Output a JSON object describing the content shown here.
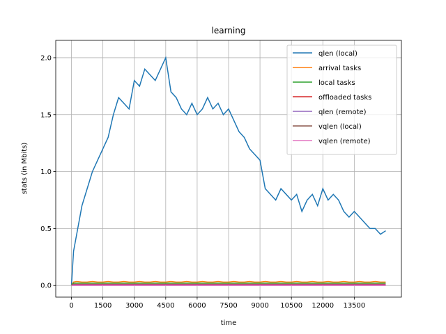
{
  "chart_data": {
    "type": "line",
    "title": "learning",
    "x_label": "time",
    "y_label": "stats (in Mbits)",
    "x": [
      0,
      100,
      250,
      500,
      750,
      1000,
      1250,
      1500,
      1750,
      2000,
      2250,
      2500,
      2750,
      3000,
      3250,
      3500,
      3750,
      4000,
      4250,
      4500,
      4750,
      5000,
      5250,
      5500,
      5750,
      6000,
      6250,
      6500,
      6750,
      7000,
      7250,
      7500,
      7750,
      8000,
      8250,
      8500,
      8750,
      9000,
      9250,
      9500,
      9750,
      10000,
      10250,
      10500,
      10750,
      11000,
      11250,
      11500,
      11750,
      12000,
      12250,
      12500,
      12750,
      13000,
      13250,
      13500,
      13750,
      14000,
      14250,
      14500,
      14750,
      15000
    ],
    "series": [
      {
        "name": "qlen (local)",
        "color": "#1f77b4",
        "values": [
          0,
          0.3,
          0.45,
          0.7,
          0.85,
          1.0,
          1.1,
          1.2,
          1.3,
          1.5,
          1.65,
          1.6,
          1.55,
          1.8,
          1.75,
          1.9,
          1.85,
          1.8,
          1.9,
          2.0,
          1.7,
          1.65,
          1.55,
          1.5,
          1.6,
          1.5,
          1.55,
          1.65,
          1.55,
          1.6,
          1.5,
          1.55,
          1.45,
          1.35,
          1.3,
          1.2,
          1.15,
          1.1,
          0.85,
          0.8,
          0.75,
          0.85,
          0.8,
          0.75,
          0.8,
          0.65,
          0.75,
          0.8,
          0.7,
          0.85,
          0.75,
          0.8,
          0.75,
          0.65,
          0.6,
          0.65,
          0.6,
          0.55,
          0.5,
          0.5,
          0.45,
          0.48
        ]
      },
      {
        "name": "arrival tasks",
        "color": "#ff7f0e",
        "values": [
          0,
          0.03,
          0.035,
          0.03,
          0.03,
          0.035,
          0.03,
          0.03,
          0.035,
          0.03,
          0.03,
          0.035,
          0.03,
          0.03,
          0.035,
          0.03,
          0.03,
          0.035,
          0.03,
          0.03,
          0.035,
          0.03,
          0.03,
          0.035,
          0.03,
          0.03,
          0.035,
          0.03,
          0.03,
          0.035,
          0.03,
          0.03,
          0.035,
          0.03,
          0.03,
          0.035,
          0.03,
          0.03,
          0.035,
          0.03,
          0.03,
          0.035,
          0.03,
          0.03,
          0.035,
          0.03,
          0.03,
          0.035,
          0.03,
          0.03,
          0.035,
          0.03,
          0.03,
          0.035,
          0.03,
          0.03,
          0.035,
          0.03,
          0.03,
          0.035,
          0.03,
          0.03
        ]
      },
      {
        "name": "local tasks",
        "color": "#2ca02c",
        "values": [
          0,
          0.02,
          0.02,
          0.02,
          0.02,
          0.02,
          0.02,
          0.02,
          0.02,
          0.02,
          0.02,
          0.02,
          0.02,
          0.02,
          0.02,
          0.02,
          0.02,
          0.02,
          0.02,
          0.02,
          0.02,
          0.02,
          0.02,
          0.02,
          0.02,
          0.02,
          0.02,
          0.02,
          0.02,
          0.02,
          0.02,
          0.02,
          0.02,
          0.02,
          0.02,
          0.02,
          0.02,
          0.02,
          0.02,
          0.02,
          0.02,
          0.02,
          0.02,
          0.02,
          0.02,
          0.02,
          0.02,
          0.02,
          0.02,
          0.02,
          0.02,
          0.02,
          0.02,
          0.02,
          0.02,
          0.02,
          0.02,
          0.02,
          0.02,
          0.02,
          0.02,
          0.02
        ]
      },
      {
        "name": "offloaded tasks",
        "color": "#d62728",
        "values": [
          0,
          0.01,
          0.01,
          0.01,
          0.01,
          0.01,
          0.01,
          0.01,
          0.01,
          0.01,
          0.01,
          0.01,
          0.01,
          0.01,
          0.01,
          0.01,
          0.01,
          0.01,
          0.01,
          0.01,
          0.01,
          0.01,
          0.01,
          0.01,
          0.01,
          0.01,
          0.01,
          0.01,
          0.01,
          0.01,
          0.01,
          0.01,
          0.01,
          0.01,
          0.01,
          0.01,
          0.01,
          0.01,
          0.01,
          0.01,
          0.01,
          0.01,
          0.01,
          0.01,
          0.01,
          0.01,
          0.01,
          0.01,
          0.01,
          0.01,
          0.01,
          0.01,
          0.01,
          0.01,
          0.01,
          0.01,
          0.01,
          0.01,
          0.01,
          0.01,
          0.01,
          0.01
        ]
      },
      {
        "name": "qlen (remote)",
        "color": "#9467bd",
        "values": [
          0,
          0.005,
          0.005,
          0.005,
          0.005,
          0.005,
          0.005,
          0.005,
          0.005,
          0.005,
          0.005,
          0.005,
          0.005,
          0.005,
          0.005,
          0.005,
          0.005,
          0.005,
          0.005,
          0.005,
          0.005,
          0.005,
          0.005,
          0.005,
          0.005,
          0.005,
          0.005,
          0.005,
          0.005,
          0.005,
          0.005,
          0.005,
          0.005,
          0.005,
          0.005,
          0.005,
          0.005,
          0.005,
          0.005,
          0.005,
          0.005,
          0.005,
          0.005,
          0.005,
          0.005,
          0.005,
          0.005,
          0.005,
          0.005,
          0.005,
          0.005,
          0.005,
          0.005,
          0.005,
          0.005,
          0.005,
          0.005,
          0.005,
          0.005,
          0.005,
          0.005,
          0.005
        ]
      },
      {
        "name": "vqlen (local)",
        "color": "#8c564b",
        "values": [
          0,
          0,
          0,
          0,
          0,
          0,
          0,
          0,
          0,
          0,
          0,
          0,
          0,
          0,
          0,
          0,
          0,
          0,
          0,
          0,
          0,
          0,
          0,
          0,
          0,
          0,
          0,
          0,
          0,
          0,
          0,
          0,
          0,
          0,
          0,
          0,
          0,
          0,
          0,
          0,
          0,
          0,
          0,
          0,
          0,
          0,
          0,
          0,
          0,
          0,
          0,
          0,
          0,
          0,
          0,
          0,
          0,
          0,
          0,
          0,
          0,
          0
        ]
      },
      {
        "name": "vqlen (remote)",
        "color": "#e377c2",
        "values": [
          0,
          0,
          0,
          0,
          0,
          0,
          0,
          0,
          0,
          0,
          0,
          0,
          0,
          0,
          0,
          0,
          0,
          0,
          0,
          0,
          0,
          0,
          0,
          0,
          0,
          0,
          0,
          0,
          0,
          0,
          0,
          0,
          0,
          0,
          0,
          0,
          0,
          0,
          0,
          0,
          0,
          0,
          0,
          0,
          0,
          0,
          0,
          0,
          0,
          0,
          0,
          0,
          0,
          0,
          0,
          0,
          0,
          0,
          0,
          0,
          0,
          0
        ]
      }
    ],
    "xlim": [
      -750,
      15750
    ],
    "ylim": [
      -0.1025,
      2.1525
    ],
    "xticks": [
      0,
      1500,
      3000,
      4500,
      6000,
      7500,
      9000,
      10500,
      12000,
      13500
    ],
    "yticks": [
      {
        "value": 0,
        "label": "0.0"
      },
      {
        "value": 0.5,
        "label": "0.5"
      },
      {
        "value": 1,
        "label": "1.0"
      },
      {
        "value": 1.5,
        "label": "1.5"
      },
      {
        "value": 2,
        "label": "2.0"
      }
    ],
    "grid": true,
    "legend": "upper right"
  }
}
